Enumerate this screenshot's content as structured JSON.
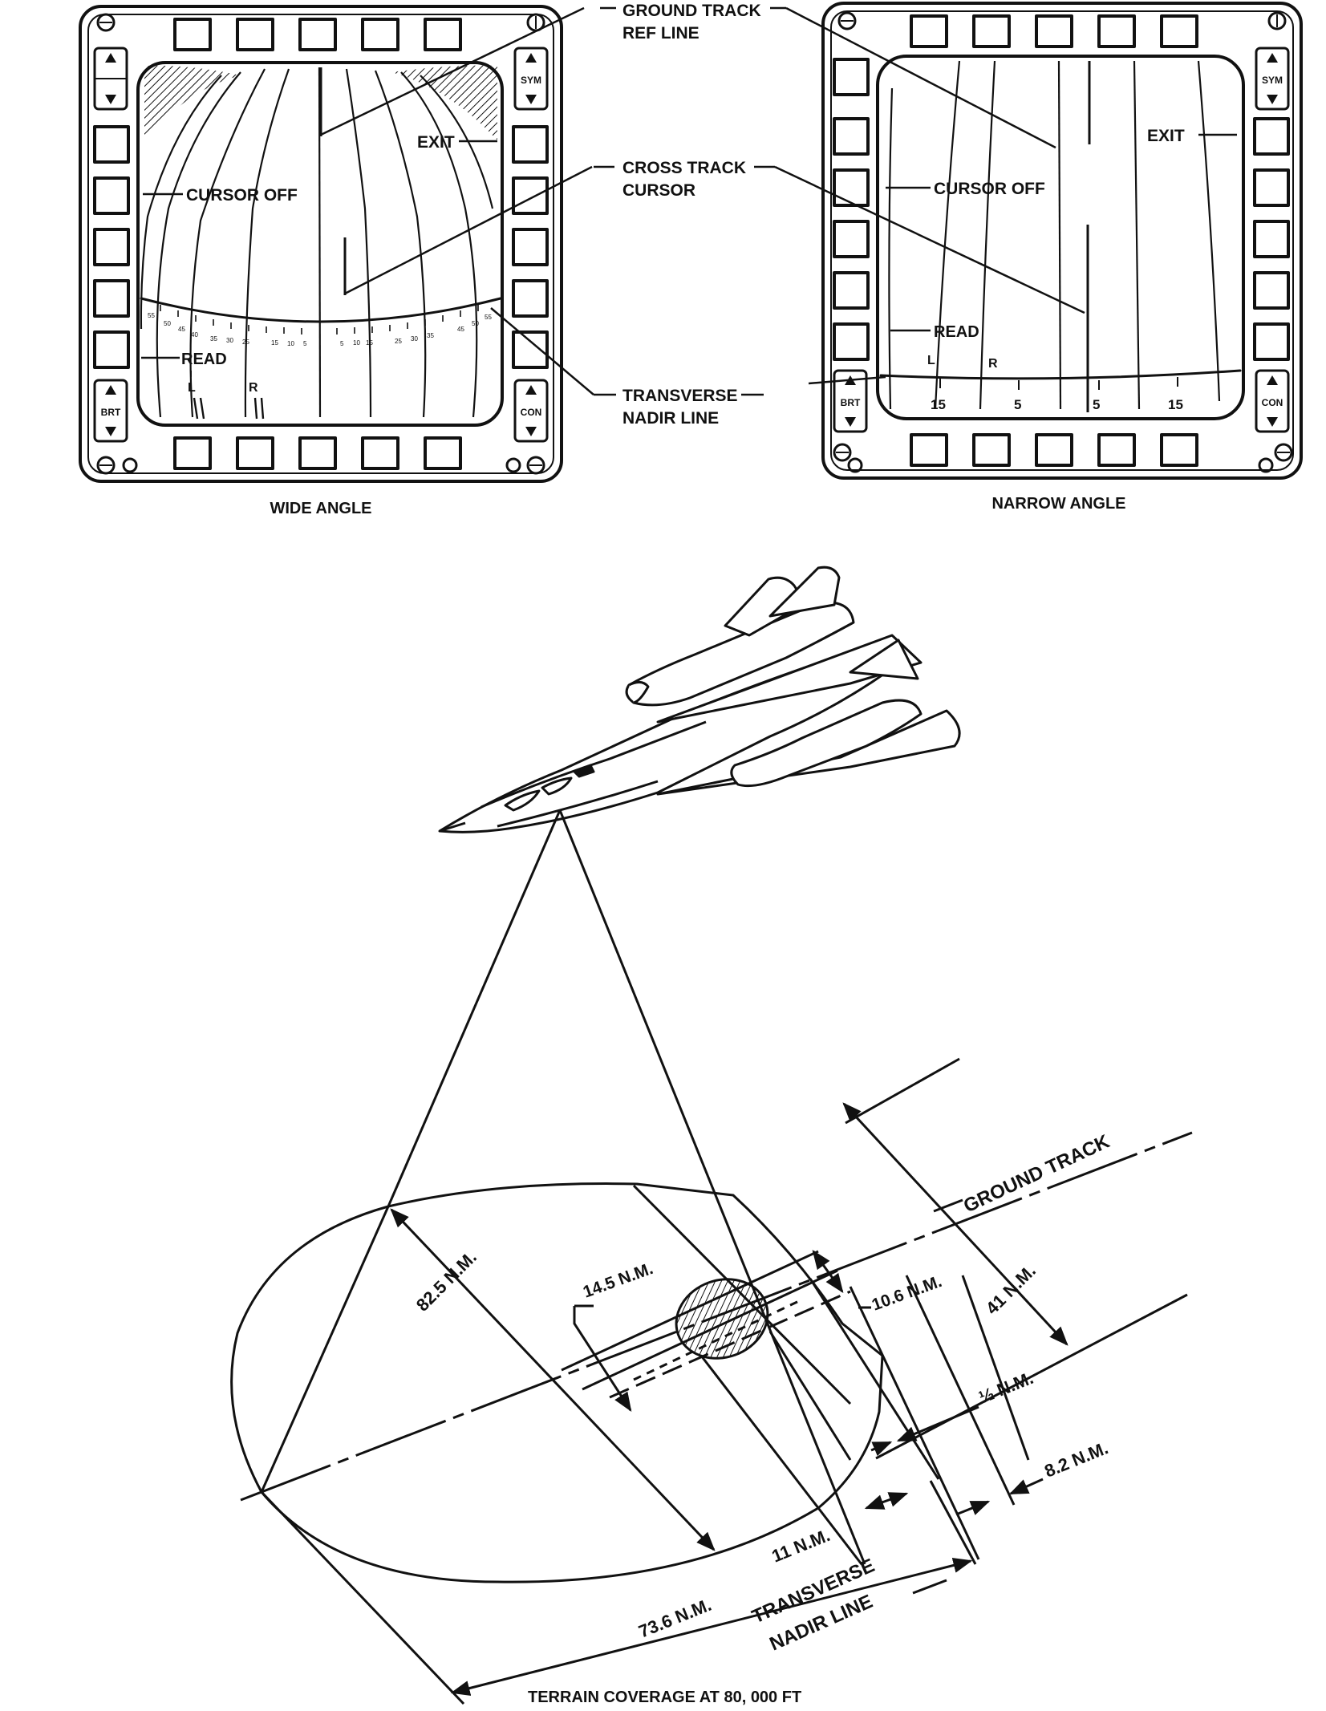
{
  "displays": {
    "wide": {
      "caption": "WIDE ANGLE",
      "cursor_off": "CURSOR OFF",
      "exit": "EXIT",
      "read": "READ",
      "left": "L",
      "right": "R",
      "top_left_key": "",
      "bottom_left_key": "BRT",
      "top_right_key": "SYM",
      "bottom_right_key": "CON",
      "scale": [
        "55",
        "50",
        "45",
        "40",
        "35",
        "30",
        "25",
        "15",
        "10",
        "5",
        "5",
        "10",
        "15",
        "25",
        "30",
        "35",
        "40",
        "45",
        "50",
        "55"
      ]
    },
    "narrow": {
      "caption": "NARROW ANGLE",
      "cursor_off": "CURSOR OFF",
      "exit": "EXIT",
      "read": "READ",
      "left": "L",
      "right": "R",
      "bottom_left_key": "BRT",
      "top_right_key": "SYM",
      "bottom_right_key": "CON",
      "scale": [
        "15",
        "5",
        "5",
        "15"
      ]
    }
  },
  "callouts": {
    "ground_track_ref_line": [
      "GROUND TRACK",
      "REF LINE"
    ],
    "cross_track_cursor": [
      "CROSS TRACK",
      "CURSOR"
    ],
    "transverse_nadir_line": [
      "TRANSVERSE",
      "NADIR LINE"
    ]
  },
  "coverage": {
    "ground_track": "GROUND TRACK",
    "d_82_5": "82.5 N.M.",
    "d_14_5": "14.5 N.M.",
    "d_10_6": "10.6 N.M.",
    "d_41": "41 N.M.",
    "d_half": "½ N.M.",
    "d_8_2": "8.2 N.M.",
    "d_11": "11 N.M.",
    "d_73_6": "73.6 N.M.",
    "transverse_nadir": [
      "TRANSVERSE",
      "NADIR LINE"
    ],
    "caption": "TERRAIN COVERAGE AT 80, 000 FT"
  }
}
